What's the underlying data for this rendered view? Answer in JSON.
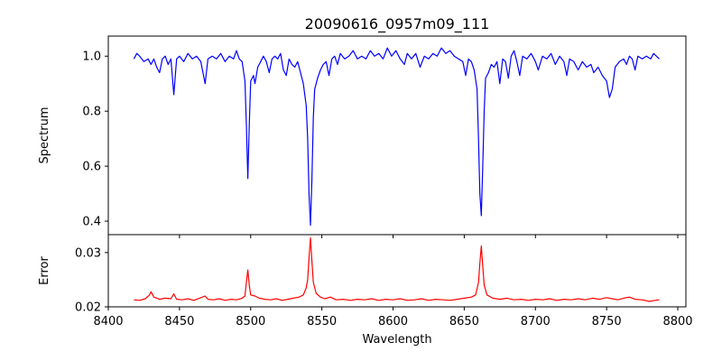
{
  "chart_data": [
    {
      "type": "line",
      "title": "20090616_0957m09_111",
      "xlabel": "",
      "ylabel": "Spectrum",
      "xlim": [
        8400,
        8805.7
      ],
      "ylim": [
        0.351,
        1.073
      ],
      "xticks": [
        8400,
        8450,
        8500,
        8550,
        8600,
        8650,
        8700,
        8750,
        8800
      ],
      "yticks": [
        0.4,
        0.6,
        0.8,
        1.0
      ],
      "ytick_labels": [
        "0.4",
        "0.6",
        "0.8",
        "1.0"
      ],
      "color": "#0000ff",
      "grid": false,
      "series": [
        {
          "name": "Spectrum",
          "points": [
            [
              8418,
              0.99
            ],
            [
              8420,
              1.01
            ],
            [
              8422,
              1.0
            ],
            [
              8425,
              0.98
            ],
            [
              8428,
              0.99
            ],
            [
              8430,
              0.97
            ],
            [
              8432,
              0.99
            ],
            [
              8434,
              0.96
            ],
            [
              8436,
              0.94
            ],
            [
              8438,
              0.99
            ],
            [
              8440,
              1.0
            ],
            [
              8442,
              0.97
            ],
            [
              8444,
              0.99
            ],
            [
              8446,
              0.86
            ],
            [
              8448,
              0.99
            ],
            [
              8450,
              1.0
            ],
            [
              8453,
              0.98
            ],
            [
              8456,
              1.01
            ],
            [
              8459,
              0.99
            ],
            [
              8462,
              1.0
            ],
            [
              8465,
              0.98
            ],
            [
              8468,
              0.9
            ],
            [
              8470,
              0.99
            ],
            [
              8473,
              1.0
            ],
            [
              8476,
              0.99
            ],
            [
              8479,
              1.01
            ],
            [
              8482,
              0.98
            ],
            [
              8485,
              1.0
            ],
            [
              8488,
              0.99
            ],
            [
              8490,
              1.02
            ],
            [
              8492,
              0.99
            ],
            [
              8494,
              0.98
            ],
            [
              8496,
              0.91
            ],
            [
              8497,
              0.75
            ],
            [
              8498,
              0.555
            ],
            [
              8499,
              0.75
            ],
            [
              8500,
              0.91
            ],
            [
              8502,
              0.93
            ],
            [
              8503,
              0.9
            ],
            [
              8505,
              0.96
            ],
            [
              8507,
              0.98
            ],
            [
              8509,
              1.0
            ],
            [
              8511,
              0.98
            ],
            [
              8513,
              0.94
            ],
            [
              8515,
              0.99
            ],
            [
              8517,
              1.0
            ],
            [
              8519,
              0.99
            ],
            [
              8521,
              1.01
            ],
            [
              8523,
              0.95
            ],
            [
              8525,
              0.93
            ],
            [
              8527,
              0.99
            ],
            [
              8529,
              0.97
            ],
            [
              8531,
              0.96
            ],
            [
              8533,
              0.98
            ],
            [
              8535,
              0.94
            ],
            [
              8537,
              0.9
            ],
            [
              8538,
              0.86
            ],
            [
              8539,
              0.82
            ],
            [
              8540,
              0.7
            ],
            [
              8541,
              0.5
            ],
            [
              8542,
              0.385
            ],
            [
              8543,
              0.55
            ],
            [
              8544,
              0.78
            ],
            [
              8545,
              0.88
            ],
            [
              8547,
              0.92
            ],
            [
              8549,
              0.95
            ],
            [
              8551,
              0.97
            ],
            [
              8553,
              0.98
            ],
            [
              8555,
              0.93
            ],
            [
              8557,
              0.99
            ],
            [
              8559,
              1.0
            ],
            [
              8561,
              0.97
            ],
            [
              8563,
              1.01
            ],
            [
              8566,
              0.99
            ],
            [
              8569,
              1.0
            ],
            [
              8572,
              1.02
            ],
            [
              8575,
              0.99
            ],
            [
              8578,
              1.0
            ],
            [
              8581,
              0.99
            ],
            [
              8584,
              1.02
            ],
            [
              8587,
              1.0
            ],
            [
              8590,
              1.01
            ],
            [
              8593,
              0.99
            ],
            [
              8596,
              1.03
            ],
            [
              8599,
              1.0
            ],
            [
              8602,
              1.02
            ],
            [
              8605,
              0.99
            ],
            [
              8608,
              0.97
            ],
            [
              8610,
              1.01
            ],
            [
              8613,
              0.99
            ],
            [
              8616,
              1.01
            ],
            [
              8619,
              0.96
            ],
            [
              8622,
              1.0
            ],
            [
              8625,
              0.99
            ],
            [
              8628,
              1.01
            ],
            [
              8631,
              1.0
            ],
            [
              8634,
              1.03
            ],
            [
              8637,
              1.01
            ],
            [
              8640,
              1.02
            ],
            [
              8643,
              1.0
            ],
            [
              8646,
              0.99
            ],
            [
              8649,
              0.98
            ],
            [
              8651,
              0.93
            ],
            [
              8653,
              0.99
            ],
            [
              8655,
              0.98
            ],
            [
              8657,
              0.95
            ],
            [
              8659,
              0.88
            ],
            [
              8660,
              0.7
            ],
            [
              8661,
              0.5
            ],
            [
              8662,
              0.42
            ],
            [
              8663,
              0.6
            ],
            [
              8664,
              0.8
            ],
            [
              8665,
              0.92
            ],
            [
              8667,
              0.94
            ],
            [
              8669,
              0.97
            ],
            [
              8671,
              0.96
            ],
            [
              8673,
              0.98
            ],
            [
              8675,
              0.9
            ],
            [
              8677,
              0.99
            ],
            [
              8679,
              0.98
            ],
            [
              8681,
              0.92
            ],
            [
              8683,
              1.0
            ],
            [
              8685,
              1.02
            ],
            [
              8687,
              0.98
            ],
            [
              8689,
              0.93
            ],
            [
              8691,
              1.0
            ],
            [
              8694,
              0.99
            ],
            [
              8697,
              1.01
            ],
            [
              8700,
              0.98
            ],
            [
              8702,
              0.95
            ],
            [
              8705,
              1.0
            ],
            [
              8708,
              0.99
            ],
            [
              8711,
              1.01
            ],
            [
              8714,
              0.97
            ],
            [
              8717,
              1.0
            ],
            [
              8720,
              0.98
            ],
            [
              8722,
              0.93
            ],
            [
              8724,
              0.99
            ],
            [
              8727,
              0.98
            ],
            [
              8730,
              0.95
            ],
            [
              8733,
              0.98
            ],
            [
              8736,
              0.96
            ],
            [
              8739,
              0.97
            ],
            [
              8741,
              0.94
            ],
            [
              8744,
              0.96
            ],
            [
              8747,
              0.93
            ],
            [
              8750,
              0.91
            ],
            [
              8752,
              0.85
            ],
            [
              8754,
              0.88
            ],
            [
              8756,
              0.96
            ],
            [
              8759,
              0.98
            ],
            [
              8762,
              0.99
            ],
            [
              8764,
              0.97
            ],
            [
              8766,
              1.0
            ],
            [
              8768,
              0.99
            ],
            [
              8770,
              0.95
            ],
            [
              8772,
              1.0
            ],
            [
              8775,
              0.99
            ],
            [
              8778,
              1.0
            ],
            [
              8781,
              0.99
            ],
            [
              8783,
              1.01
            ],
            [
              8785,
              1.0
            ],
            [
              8787,
              0.99
            ]
          ]
        }
      ]
    },
    {
      "type": "line",
      "title": "",
      "xlabel": "Wavelength",
      "ylabel": "Error",
      "xlim": [
        8400,
        8805.7
      ],
      "ylim": [
        0.02,
        0.0333
      ],
      "xticks": [
        8400,
        8450,
        8500,
        8550,
        8600,
        8650,
        8700,
        8750,
        8800
      ],
      "xtick_labels": [
        "8400",
        "8450",
        "8500",
        "8550",
        "8600",
        "8650",
        "8700",
        "8750",
        "8800"
      ],
      "yticks": [
        0.02,
        0.03
      ],
      "ytick_labels": [
        "0.02",
        "0.03"
      ],
      "color": "#ff0000",
      "grid": false,
      "series": [
        {
          "name": "Error",
          "points": [
            [
              8418,
              0.0213
            ],
            [
              8422,
              0.0212
            ],
            [
              8426,
              0.0215
            ],
            [
              8429,
              0.0222
            ],
            [
              8430,
              0.0228
            ],
            [
              8432,
              0.0218
            ],
            [
              8436,
              0.0214
            ],
            [
              8440,
              0.0216
            ],
            [
              8444,
              0.0215
            ],
            [
              8446,
              0.0224
            ],
            [
              8448,
              0.0214
            ],
            [
              8452,
              0.0213
            ],
            [
              8456,
              0.0215
            ],
            [
              8460,
              0.0212
            ],
            [
              8464,
              0.0216
            ],
            [
              8468,
              0.022
            ],
            [
              8470,
              0.0214
            ],
            [
              8474,
              0.0213
            ],
            [
              8478,
              0.0215
            ],
            [
              8482,
              0.0212
            ],
            [
              8486,
              0.0214
            ],
            [
              8490,
              0.0213
            ],
            [
              8494,
              0.0216
            ],
            [
              8496,
              0.022
            ],
            [
              8497,
              0.0245
            ],
            [
              8498,
              0.0268
            ],
            [
              8499,
              0.024
            ],
            [
              8500,
              0.0222
            ],
            [
              8503,
              0.022
            ],
            [
              8506,
              0.0216
            ],
            [
              8510,
              0.0214
            ],
            [
              8514,
              0.0213
            ],
            [
              8518,
              0.0215
            ],
            [
              8522,
              0.0212
            ],
            [
              8526,
              0.0214
            ],
            [
              8530,
              0.0216
            ],
            [
              8534,
              0.0218
            ],
            [
              8537,
              0.0222
            ],
            [
              8539,
              0.0235
            ],
            [
              8540,
              0.025
            ],
            [
              8541,
              0.029
            ],
            [
              8542,
              0.0327
            ],
            [
              8543,
              0.0285
            ],
            [
              8544,
              0.0245
            ],
            [
              8546,
              0.0225
            ],
            [
              8549,
              0.0218
            ],
            [
              8552,
              0.0215
            ],
            [
              8556,
              0.0218
            ],
            [
              8560,
              0.0213
            ],
            [
              8565,
              0.0214
            ],
            [
              8570,
              0.0212
            ],
            [
              8575,
              0.0214
            ],
            [
              8580,
              0.0213
            ],
            [
              8585,
              0.0215
            ],
            [
              8590,
              0.0212
            ],
            [
              8595,
              0.0214
            ],
            [
              8600,
              0.0213
            ],
            [
              8605,
              0.0215
            ],
            [
              8610,
              0.0212
            ],
            [
              8615,
              0.0213
            ],
            [
              8620,
              0.0215
            ],
            [
              8625,
              0.0212
            ],
            [
              8630,
              0.0214
            ],
            [
              8635,
              0.0213
            ],
            [
              8640,
              0.0212
            ],
            [
              8645,
              0.0214
            ],
            [
              8650,
              0.0216
            ],
            [
              8655,
              0.0218
            ],
            [
              8658,
              0.0222
            ],
            [
              8660,
              0.0245
            ],
            [
              8661,
              0.028
            ],
            [
              8662,
              0.0312
            ],
            [
              8663,
              0.0275
            ],
            [
              8664,
              0.024
            ],
            [
              8666,
              0.0222
            ],
            [
              8670,
              0.0216
            ],
            [
              8675,
              0.0214
            ],
            [
              8680,
              0.0216
            ],
            [
              8685,
              0.0213
            ],
            [
              8690,
              0.0214
            ],
            [
              8695,
              0.0212
            ],
            [
              8700,
              0.0214
            ],
            [
              8705,
              0.0213
            ],
            [
              8710,
              0.0215
            ],
            [
              8715,
              0.0212
            ],
            [
              8720,
              0.0214
            ],
            [
              8725,
              0.0213
            ],
            [
              8730,
              0.0215
            ],
            [
              8735,
              0.0213
            ],
            [
              8740,
              0.0216
            ],
            [
              8745,
              0.0214
            ],
            [
              8750,
              0.0217
            ],
            [
              8754,
              0.0215
            ],
            [
              8758,
              0.0213
            ],
            [
              8762,
              0.0216
            ],
            [
              8766,
              0.0218
            ],
            [
              8770,
              0.0214
            ],
            [
              8775,
              0.0213
            ],
            [
              8780,
              0.021
            ],
            [
              8784,
              0.0212
            ],
            [
              8787,
              0.0213
            ]
          ]
        }
      ]
    }
  ]
}
